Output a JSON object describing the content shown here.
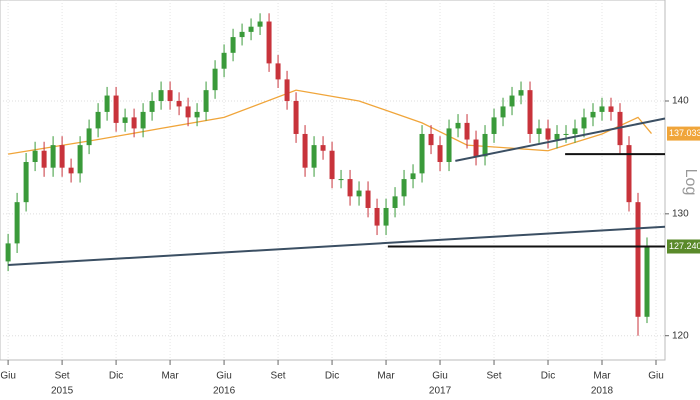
{
  "chart_data": {
    "type": "candlestick",
    "log_scale": true,
    "grid": true,
    "scale_label": "Log",
    "xlim": [
      -0.9,
      73
    ],
    "ylim": [
      118.1,
      149.6
    ],
    "yticks": [
      120,
      130,
      140
    ],
    "xticks": [
      {
        "value": 0,
        "label": "Giu"
      },
      {
        "value": 6,
        "label": "Set"
      },
      {
        "value": 12,
        "label": "Dic"
      },
      {
        "value": 18,
        "label": "Mar"
      },
      {
        "value": 24,
        "label": "Giu"
      },
      {
        "value": 30,
        "label": "Set"
      },
      {
        "value": 36,
        "label": "Dic"
      },
      {
        "value": 42,
        "label": "Mar"
      },
      {
        "value": 48,
        "label": "Giu"
      },
      {
        "value": 54,
        "label": "Set"
      },
      {
        "value": 60,
        "label": "Dic"
      },
      {
        "value": 66,
        "label": "Mar"
      },
      {
        "value": 72,
        "label": "Giu"
      }
    ],
    "year_labels": [
      {
        "value": 6,
        "label": "2015"
      },
      {
        "value": 24,
        "label": "2016"
      },
      {
        "value": 48,
        "label": "2017"
      },
      {
        "value": 66,
        "label": "2018"
      }
    ],
    "up_color": "#3a9a3a",
    "down_color": "#c8333b",
    "open": [
      126,
      127.5,
      131,
      134.5,
      135.5,
      134,
      136,
      134,
      133.5,
      136,
      137.5,
      139,
      140.5,
      138,
      138.5,
      137.5,
      139,
      140,
      141,
      140,
      139.5,
      138.5,
      139,
      141,
      143,
      144.5,
      146,
      146.5,
      147,
      147.5,
      143.5,
      142,
      140,
      137,
      134,
      136,
      135.5,
      133,
      133,
      131.5,
      132,
      130.5,
      129,
      130.5,
      131.5,
      133,
      133.5,
      137,
      136,
      134.5,
      137.5,
      138,
      136.5,
      135,
      137,
      138.5,
      139.5,
      140.5,
      141,
      137,
      137.5,
      136.5,
      137,
      137,
      137.5,
      138.5,
      139,
      139.5,
      139,
      136,
      131,
      121.5
    ],
    "high": [
      128.3,
      131.8,
      135.3,
      136.3,
      136.3,
      136.8,
      136.8,
      134.8,
      136.8,
      138.3,
      139.8,
      141.3,
      141.3,
      139.3,
      139.3,
      139.8,
      140.8,
      141.8,
      141.8,
      140.8,
      140.3,
      139.8,
      141.8,
      143.8,
      145.3,
      146.8,
      147.3,
      147.8,
      148.3,
      148.3,
      144.3,
      142.8,
      140.8,
      137.8,
      136.8,
      136.8,
      136.3,
      133.8,
      133.8,
      132.8,
      132.8,
      131.3,
      131.3,
      132.3,
      133.8,
      134.3,
      137.8,
      137.8,
      136.8,
      138.3,
      138.8,
      138.8,
      137.3,
      137.8,
      139.3,
      140.3,
      141.3,
      141.8,
      141.8,
      138.3,
      138.3,
      137.8,
      137.8,
      138.3,
      139.3,
      139.8,
      140.3,
      140.3,
      139.8,
      136.8,
      131.8,
      128.0
    ],
    "low": [
      125.2,
      126.7,
      130.2,
      133.7,
      133.2,
      133.2,
      133.2,
      132.7,
      132.7,
      135.2,
      136.7,
      138.2,
      137.2,
      137.2,
      136.7,
      136.7,
      138.2,
      139.2,
      139.2,
      138.7,
      137.7,
      137.7,
      138.2,
      140.2,
      142.2,
      143.7,
      145.2,
      145.7,
      146.2,
      142.7,
      141.2,
      139.2,
      136.2,
      133.2,
      133.2,
      134.7,
      132.2,
      132.2,
      130.7,
      130.7,
      129.7,
      128.2,
      128.2,
      129.7,
      130.7,
      132.2,
      132.7,
      135.2,
      133.7,
      133.7,
      136.7,
      135.7,
      134.2,
      134.2,
      136.2,
      137.7,
      138.7,
      139.7,
      136.2,
      136.2,
      135.7,
      135.7,
      136.2,
      136.2,
      136.7,
      137.7,
      138.2,
      138.2,
      135.2,
      130.2,
      120,
      121
    ],
    "close": [
      127.5,
      131,
      134.5,
      135.5,
      134,
      136,
      134,
      133.5,
      136,
      137.5,
      139,
      140.5,
      138,
      138.5,
      137.5,
      139,
      140,
      141,
      140,
      139.5,
      138.5,
      139,
      141,
      143,
      144.5,
      146,
      146.5,
      147,
      147.5,
      143.5,
      142,
      140,
      137,
      134,
      136,
      135.5,
      133,
      133,
      131.5,
      132,
      130.5,
      129,
      130.5,
      131.5,
      133,
      133.5,
      137,
      136,
      134.5,
      137.5,
      138,
      136.5,
      135,
      137,
      138.5,
      139.5,
      140.5,
      141,
      137,
      137.5,
      136.5,
      137,
      137,
      137.5,
      138.5,
      139,
      139.5,
      139,
      136,
      131,
      121.5,
      127.24
    ],
    "moving_average": {
      "color": "#f0a53a",
      "x": [
        0,
        10,
        17,
        24,
        32,
        39,
        46,
        51,
        60,
        66,
        70,
        71.5
      ],
      "values": [
        135.2,
        136.5,
        137.5,
        138.5,
        141,
        140,
        138,
        136,
        135.5,
        137,
        138.5,
        137.0334
      ]
    },
    "trendlines": [
      {
        "color": "#3b4f63",
        "x": [
          0,
          73
        ],
        "values": [
          125.7,
          128.9
        ]
      },
      {
        "color": "#3b4f63",
        "x": [
          49.7,
          73
        ],
        "values": [
          134.6,
          138.4
        ]
      },
      {
        "color": "#111111",
        "x": [
          61.9,
          73
        ],
        "values": [
          135.2,
          135.2
        ]
      },
      {
        "color": "#111111",
        "x": [
          42.2,
          73
        ],
        "values": [
          127.24,
          127.24
        ]
      }
    ],
    "price_tags": [
      {
        "value": 137.0334,
        "label": "137.0334",
        "color": "#f0a53a"
      },
      {
        "value": 127.24,
        "label": "127.2400",
        "color": "#5a8a2a"
      }
    ]
  }
}
